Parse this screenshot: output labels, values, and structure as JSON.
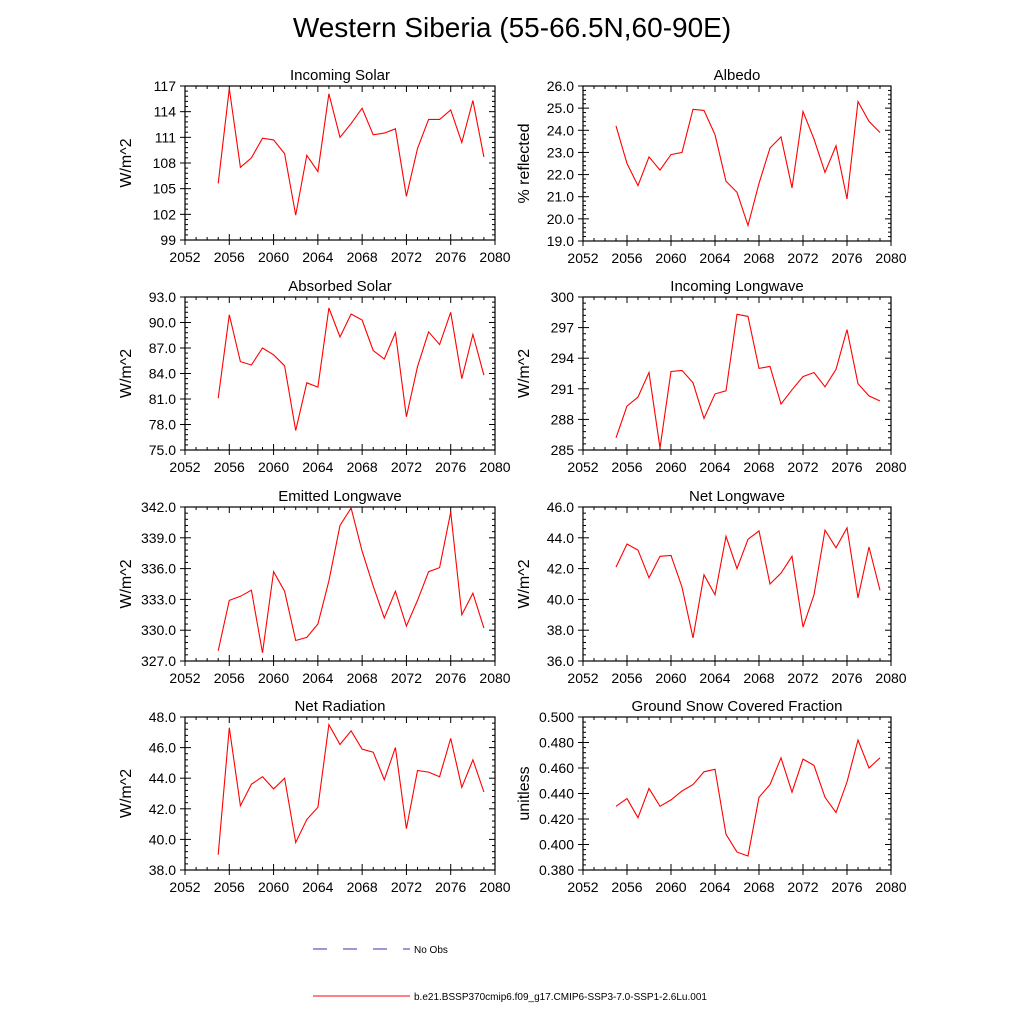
{
  "title": "Western Siberia (55-66.5N,60-90E)",
  "colors": {
    "series": "#ff0000",
    "no_obs": "#3333aa",
    "axis": "#000000"
  },
  "legend": {
    "no_obs_label": "No Obs",
    "model_label": "b.e21.BSSP370cmip6.f09_g17.CMIP6-SSP3-7.0-SSP1-2.6Lu.001"
  },
  "chart_data": [
    {
      "type": "line",
      "title": "Incoming Solar",
      "xlabel": "",
      "ylabel": "W/m^2",
      "xlim": [
        2052,
        2080
      ],
      "xticks": [
        2052,
        2056,
        2060,
        2064,
        2068,
        2072,
        2076,
        2080
      ],
      "xtick_labels": [
        "2052",
        "2056",
        "2060",
        "2064",
        "2068",
        "2072",
        "2076",
        "2080"
      ],
      "ylim": [
        99,
        117
      ],
      "yticks": [
        99,
        102,
        105,
        108,
        111,
        114,
        117
      ],
      "ytick_labels": [
        "99",
        "102",
        "105",
        "108",
        "111",
        "114",
        "117"
      ],
      "series": [
        {
          "x": [
            2055,
            2056,
            2057,
            2058,
            2059,
            2060,
            2061,
            2062,
            2063,
            2064,
            2065,
            2066,
            2067,
            2068,
            2069,
            2070,
            2071,
            2072,
            2073,
            2074,
            2075,
            2076,
            2077,
            2078,
            2079
          ],
          "values": [
            105.6,
            116.7,
            107.5,
            108.6,
            110.9,
            110.7,
            109.1,
            101.9,
            108.9,
            107.0,
            116.1,
            111.0,
            112.6,
            114.4,
            111.3,
            111.5,
            112.0,
            104.1,
            109.7,
            113.1,
            113.1,
            114.2,
            110.4,
            115.3,
            108.7
          ]
        }
      ]
    },
    {
      "type": "line",
      "title": "Albedo",
      "xlabel": "",
      "ylabel": "% reflected",
      "xlim": [
        2052,
        2080
      ],
      "xticks": [
        2052,
        2056,
        2060,
        2064,
        2068,
        2072,
        2076,
        2080
      ],
      "xtick_labels": [
        "2052",
        "2056",
        "2060",
        "2064",
        "2068",
        "2072",
        "2076",
        "2080"
      ],
      "ylim": [
        19.0,
        26.0
      ],
      "yticks": [
        19,
        20,
        21,
        22,
        23,
        24,
        25,
        26
      ],
      "ytick_labels": [
        "19.0",
        "20.0",
        "21.0",
        "22.0",
        "23.0",
        "24.0",
        "25.0",
        "26.0"
      ],
      "series": [
        {
          "x": [
            2055,
            2056,
            2057,
            2058,
            2059,
            2060,
            2061,
            2062,
            2063,
            2064,
            2065,
            2066,
            2067,
            2068,
            2069,
            2070,
            2071,
            2072,
            2073,
            2074,
            2075,
            2076,
            2077,
            2078,
            2079
          ],
          "values": [
            24.2,
            22.5,
            21.5,
            22.8,
            22.2,
            22.9,
            23.0,
            24.95,
            24.9,
            23.8,
            21.7,
            21.2,
            19.7,
            21.6,
            23.2,
            23.7,
            21.4,
            24.85,
            23.6,
            22.1,
            23.3,
            20.9,
            25.3,
            24.4,
            23.9
          ]
        }
      ]
    },
    {
      "type": "line",
      "title": "Absorbed Solar",
      "xlabel": "",
      "ylabel": "W/m^2",
      "xlim": [
        2052,
        2080
      ],
      "xticks": [
        2052,
        2056,
        2060,
        2064,
        2068,
        2072,
        2076,
        2080
      ],
      "xtick_labels": [
        "2052",
        "2056",
        "2060",
        "2064",
        "2068",
        "2072",
        "2076",
        "2080"
      ],
      "ylim": [
        75.0,
        93.0
      ],
      "yticks": [
        75,
        78,
        81,
        84,
        87,
        90,
        93
      ],
      "ytick_labels": [
        "75.0",
        "78.0",
        "81.0",
        "84.0",
        "87.0",
        "90.0",
        "93.0"
      ],
      "series": [
        {
          "x": [
            2055,
            2056,
            2057,
            2058,
            2059,
            2060,
            2061,
            2062,
            2063,
            2064,
            2065,
            2066,
            2067,
            2068,
            2069,
            2070,
            2071,
            2072,
            2073,
            2074,
            2075,
            2076,
            2077,
            2078,
            2079
          ],
          "values": [
            81.1,
            90.9,
            85.4,
            85.0,
            87.0,
            86.2,
            84.9,
            77.3,
            82.9,
            82.4,
            91.7,
            88.3,
            91.0,
            90.3,
            86.7,
            85.7,
            88.8,
            78.9,
            84.8,
            88.9,
            87.4,
            91.2,
            83.4,
            88.6,
            83.8
          ]
        }
      ]
    },
    {
      "type": "line",
      "title": "Incoming Longwave",
      "xlabel": "",
      "ylabel": "W/m^2",
      "xlim": [
        2052,
        2080
      ],
      "xticks": [
        2052,
        2056,
        2060,
        2064,
        2068,
        2072,
        2076,
        2080
      ],
      "xtick_labels": [
        "2052",
        "2056",
        "2060",
        "2064",
        "2068",
        "2072",
        "2076",
        "2080"
      ],
      "ylim": [
        285,
        300
      ],
      "yticks": [
        285,
        288,
        291,
        294,
        297,
        300
      ],
      "ytick_labels": [
        "285",
        "288",
        "291",
        "294",
        "297",
        "300"
      ],
      "series": [
        {
          "x": [
            2055,
            2056,
            2057,
            2058,
            2059,
            2060,
            2061,
            2062,
            2063,
            2064,
            2065,
            2066,
            2067,
            2068,
            2069,
            2070,
            2071,
            2072,
            2073,
            2074,
            2075,
            2076,
            2077,
            2078,
            2079
          ],
          "values": [
            286.2,
            289.3,
            290.2,
            292.6,
            285.2,
            292.7,
            292.8,
            291.6,
            288.1,
            290.5,
            290.8,
            298.3,
            298.1,
            293.0,
            293.2,
            289.5,
            290.9,
            292.2,
            292.6,
            291.2,
            292.9,
            296.8,
            291.5,
            290.3,
            289.8
          ]
        }
      ]
    },
    {
      "type": "line",
      "title": "Emitted Longwave",
      "xlabel": "",
      "ylabel": "W/m^2",
      "xlim": [
        2052,
        2080
      ],
      "xticks": [
        2052,
        2056,
        2060,
        2064,
        2068,
        2072,
        2076,
        2080
      ],
      "xtick_labels": [
        "2052",
        "2056",
        "2060",
        "2064",
        "2068",
        "2072",
        "2076",
        "2080"
      ],
      "ylim": [
        327.0,
        342.0
      ],
      "yticks": [
        327,
        330,
        333,
        336,
        339,
        342
      ],
      "ytick_labels": [
        "327.0",
        "330.0",
        "333.0",
        "336.0",
        "339.0",
        "342.0"
      ],
      "series": [
        {
          "x": [
            2055,
            2056,
            2057,
            2058,
            2059,
            2060,
            2061,
            2062,
            2063,
            2064,
            2065,
            2066,
            2067,
            2068,
            2069,
            2070,
            2071,
            2072,
            2073,
            2074,
            2075,
            2076,
            2077,
            2078,
            2079
          ],
          "values": [
            328.0,
            332.9,
            333.3,
            333.9,
            327.8,
            335.7,
            333.8,
            329.0,
            329.3,
            330.6,
            334.8,
            340.2,
            341.9,
            337.7,
            334.3,
            331.2,
            333.8,
            330.4,
            332.9,
            335.7,
            336.1,
            341.5,
            331.5,
            333.6,
            330.2
          ]
        }
      ]
    },
    {
      "type": "line",
      "title": "Net Longwave",
      "xlabel": "",
      "ylabel": "W/m^2",
      "xlim": [
        2052,
        2080
      ],
      "xticks": [
        2052,
        2056,
        2060,
        2064,
        2068,
        2072,
        2076,
        2080
      ],
      "xtick_labels": [
        "2052",
        "2056",
        "2060",
        "2064",
        "2068",
        "2072",
        "2076",
        "2080"
      ],
      "ylim": [
        36.0,
        46.0
      ],
      "yticks": [
        36,
        38,
        40,
        42,
        44,
        46
      ],
      "ytick_labels": [
        "36.0",
        "38.0",
        "40.0",
        "42.0",
        "44.0",
        "46.0"
      ],
      "series": [
        {
          "x": [
            2055,
            2056,
            2057,
            2058,
            2059,
            2060,
            2061,
            2062,
            2063,
            2064,
            2065,
            2066,
            2067,
            2068,
            2069,
            2070,
            2071,
            2072,
            2073,
            2074,
            2075,
            2076,
            2077,
            2078,
            2079
          ],
          "values": [
            42.1,
            43.6,
            43.2,
            41.4,
            42.8,
            42.85,
            40.8,
            37.5,
            41.6,
            40.3,
            44.1,
            42.0,
            43.9,
            44.45,
            41.0,
            41.7,
            42.8,
            38.2,
            40.3,
            44.5,
            43.35,
            44.65,
            40.1,
            43.4,
            40.6
          ]
        }
      ]
    },
    {
      "type": "line",
      "title": "Net Radiation",
      "xlabel": "",
      "ylabel": "W/m^2",
      "xlim": [
        2052,
        2080
      ],
      "xticks": [
        2052,
        2056,
        2060,
        2064,
        2068,
        2072,
        2076,
        2080
      ],
      "xtick_labels": [
        "2052",
        "2056",
        "2060",
        "2064",
        "2068",
        "2072",
        "2076",
        "2080"
      ],
      "ylim": [
        38.0,
        48.0
      ],
      "yticks": [
        38,
        40,
        42,
        44,
        46,
        48
      ],
      "ytick_labels": [
        "38.0",
        "40.0",
        "42.0",
        "44.0",
        "46.0",
        "48.0"
      ],
      "series": [
        {
          "x": [
            2055,
            2056,
            2057,
            2058,
            2059,
            2060,
            2061,
            2062,
            2063,
            2064,
            2065,
            2066,
            2067,
            2068,
            2069,
            2070,
            2071,
            2072,
            2073,
            2074,
            2075,
            2076,
            2077,
            2078,
            2079
          ],
          "values": [
            39.0,
            47.3,
            42.2,
            43.6,
            44.1,
            43.3,
            44.0,
            39.8,
            41.3,
            42.1,
            47.5,
            46.2,
            47.1,
            45.9,
            45.7,
            43.9,
            46.0,
            40.7,
            44.5,
            44.4,
            44.1,
            46.6,
            43.4,
            45.2,
            43.1
          ]
        }
      ]
    },
    {
      "type": "line",
      "title": "Ground Snow Covered Fraction",
      "xlabel": "",
      "ylabel": "unitless",
      "xlim": [
        2052,
        2080
      ],
      "xticks": [
        2052,
        2056,
        2060,
        2064,
        2068,
        2072,
        2076,
        2080
      ],
      "xtick_labels": [
        "2052",
        "2056",
        "2060",
        "2064",
        "2068",
        "2072",
        "2076",
        "2080"
      ],
      "ylim": [
        0.38,
        0.5
      ],
      "yticks": [
        0.38,
        0.4,
        0.42,
        0.44,
        0.46,
        0.48,
        0.5
      ],
      "ytick_labels": [
        "0.380",
        "0.400",
        "0.420",
        "0.440",
        "0.460",
        "0.480",
        "0.500"
      ],
      "series": [
        {
          "x": [
            2055,
            2056,
            2057,
            2058,
            2059,
            2060,
            2061,
            2062,
            2063,
            2064,
            2065,
            2066,
            2067,
            2068,
            2069,
            2070,
            2071,
            2072,
            2073,
            2074,
            2075,
            2076,
            2077,
            2078,
            2079
          ],
          "values": [
            0.43,
            0.436,
            0.421,
            0.444,
            0.43,
            0.435,
            0.442,
            0.447,
            0.457,
            0.459,
            0.408,
            0.394,
            0.391,
            0.437,
            0.447,
            0.468,
            0.441,
            0.467,
            0.462,
            0.437,
            0.425,
            0.449,
            0.482,
            0.46,
            0.468
          ]
        }
      ]
    }
  ]
}
